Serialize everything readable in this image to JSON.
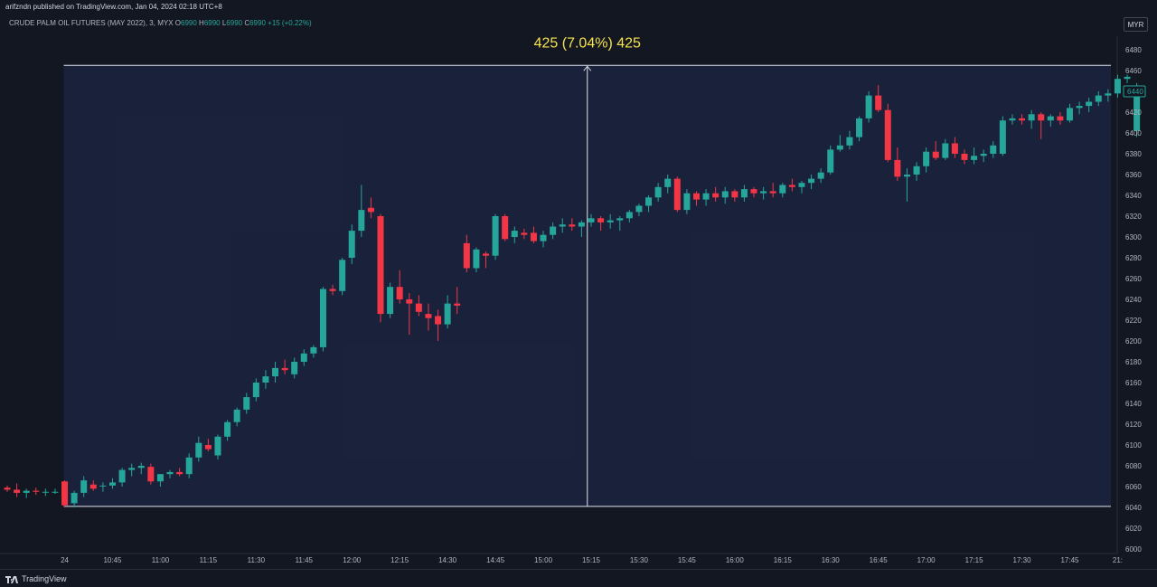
{
  "header": {
    "publish_line": "arifzndn published on TradingView.com, Jan 04, 2024 02:18 UTC+8"
  },
  "legend": {
    "symbol": "CRUDE PALM OIL FUTURES (MAY 2022), 3, MYX",
    "open_key": "O",
    "open": "6990",
    "high_key": "H",
    "high": "6990",
    "low_key": "L",
    "low": "6990",
    "close_key": "C",
    "close": "6990",
    "change": "+15 (+0.22%)"
  },
  "currency_button": "MYR",
  "footer": {
    "brand": "TradingView"
  },
  "colors": {
    "up": "#26a69a",
    "down": "#f23645",
    "background": "#131722",
    "range_fill": "#1c2540",
    "measure_text": "#f7e34b"
  },
  "chart_data": {
    "type": "candlestick",
    "ylim": [
      6000,
      6490
    ],
    "y_ticks": [
      6000,
      6020,
      6040,
      6060,
      6080,
      6100,
      6120,
      6140,
      6160,
      6180,
      6200,
      6220,
      6240,
      6260,
      6280,
      6300,
      6320,
      6340,
      6360,
      6380,
      6400,
      6420,
      6440,
      6460,
      6480
    ],
    "x_ticks": [
      {
        "label": "24",
        "idx": 6
      },
      {
        "label": "10:45",
        "idx": 11
      },
      {
        "label": "11:00",
        "idx": 16
      },
      {
        "label": "11:15",
        "idx": 21
      },
      {
        "label": "11:30",
        "idx": 26
      },
      {
        "label": "11:45",
        "idx": 31
      },
      {
        "label": "12:00",
        "idx": 36
      },
      {
        "label": "12:15",
        "idx": 41
      },
      {
        "label": "14:30",
        "idx": 46
      },
      {
        "label": "14:45",
        "idx": 51
      },
      {
        "label": "15:00",
        "idx": 56
      },
      {
        "label": "15:15",
        "idx": 61
      },
      {
        "label": "15:30",
        "idx": 66
      },
      {
        "label": "15:45",
        "idx": 71
      },
      {
        "label": "16:00",
        "idx": 76
      },
      {
        "label": "16:15",
        "idx": 81
      },
      {
        "label": "16:30",
        "idx": 86
      },
      {
        "label": "16:45",
        "idx": 91
      },
      {
        "label": "17:00",
        "idx": 96
      },
      {
        "label": "17:15",
        "idx": 101
      },
      {
        "label": "17:30",
        "idx": 106
      },
      {
        "label": "17:45",
        "idx": 111
      },
      {
        "label": "21:",
        "idx": 116
      }
    ],
    "candles": [
      [
        6059,
        6061,
        6055,
        6057
      ],
      [
        6057,
        6063,
        6050,
        6054
      ],
      [
        6054,
        6058,
        6049,
        6056
      ],
      [
        6056,
        6059,
        6052,
        6055
      ],
      [
        6055,
        6058,
        6051,
        6055
      ],
      [
        6055,
        6058,
        6053,
        6055
      ],
      [
        6065,
        6066,
        6040,
        6042
      ],
      [
        6044,
        6056,
        6040,
        6054
      ],
      [
        6054,
        6070,
        6050,
        6066
      ],
      [
        6062,
        6066,
        6056,
        6058
      ],
      [
        6061,
        6064,
        6055,
        6061
      ],
      [
        6061,
        6068,
        6058,
        6064
      ],
      [
        6064,
        6078,
        6060,
        6076
      ],
      [
        6076,
        6082,
        6070,
        6078
      ],
      [
        6078,
        6083,
        6072,
        6080
      ],
      [
        6079,
        6082,
        6062,
        6065
      ],
      [
        6065,
        6072,
        6060,
        6072
      ],
      [
        6072,
        6076,
        6068,
        6074
      ],
      [
        6074,
        6078,
        6070,
        6072
      ],
      [
        6072,
        6092,
        6068,
        6088
      ],
      [
        6088,
        6108,
        6084,
        6102
      ],
      [
        6100,
        6106,
        6094,
        6096
      ],
      [
        6090,
        6110,
        6086,
        6108
      ],
      [
        6108,
        6124,
        6104,
        6122
      ],
      [
        6122,
        6136,
        6118,
        6134
      ],
      [
        6134,
        6150,
        6130,
        6146
      ],
      [
        6146,
        6164,
        6142,
        6160
      ],
      [
        6160,
        6172,
        6154,
        6166
      ],
      [
        6166,
        6180,
        6160,
        6174
      ],
      [
        6174,
        6182,
        6168,
        6172
      ],
      [
        6168,
        6184,
        6164,
        6180
      ],
      [
        6180,
        6192,
        6176,
        6188
      ],
      [
        6188,
        6196,
        6184,
        6194
      ],
      [
        6194,
        6252,
        6190,
        6250
      ],
      [
        6250,
        6254,
        6244,
        6248
      ],
      [
        6248,
        6280,
        6244,
        6278
      ],
      [
        6280,
        6312,
        6274,
        6306
      ],
      [
        6306,
        6350,
        6300,
        6326
      ],
      [
        6328,
        6338,
        6318,
        6324
      ],
      [
        6320,
        6322,
        6218,
        6226
      ],
      [
        6226,
        6256,
        6222,
        6252
      ],
      [
        6252,
        6268,
        6236,
        6240
      ],
      [
        6240,
        6246,
        6206,
        6236
      ],
      [
        6236,
        6244,
        6224,
        6228
      ],
      [
        6226,
        6236,
        6210,
        6222
      ],
      [
        6224,
        6230,
        6200,
        6216
      ],
      [
        6216,
        6244,
        6212,
        6236
      ],
      [
        6236,
        6252,
        6226,
        6234
      ],
      [
        6294,
        6302,
        6266,
        6270
      ],
      [
        6270,
        6290,
        6266,
        6288
      ],
      [
        6284,
        6286,
        6270,
        6282
      ],
      [
        6282,
        6322,
        6278,
        6320
      ],
      [
        6320,
        6322,
        6296,
        6298
      ],
      [
        6300,
        6310,
        6294,
        6306
      ],
      [
        6304,
        6308,
        6298,
        6302
      ],
      [
        6304,
        6310,
        6294,
        6296
      ],
      [
        6296,
        6306,
        6290,
        6302
      ],
      [
        6302,
        6314,
        6298,
        6310
      ],
      [
        6310,
        6318,
        6304,
        6312
      ],
      [
        6312,
        6318,
        6306,
        6310
      ],
      [
        6310,
        6316,
        6300,
        6314
      ],
      [
        6314,
        6322,
        6310,
        6318
      ],
      [
        6318,
        6320,
        6306,
        6314
      ],
      [
        6314,
        6322,
        6308,
        6316
      ],
      [
        6316,
        6320,
        6306,
        6318
      ],
      [
        6318,
        6326,
        6314,
        6324
      ],
      [
        6324,
        6332,
        6320,
        6330
      ],
      [
        6330,
        6340,
        6324,
        6338
      ],
      [
        6338,
        6352,
        6334,
        6348
      ],
      [
        6348,
        6360,
        6342,
        6356
      ],
      [
        6356,
        6358,
        6324,
        6326
      ],
      [
        6326,
        6346,
        6322,
        6342
      ],
      [
        6342,
        6344,
        6330,
        6336
      ],
      [
        6336,
        6346,
        6330,
        6342
      ],
      [
        6342,
        6348,
        6334,
        6338
      ],
      [
        6338,
        6348,
        6332,
        6344
      ],
      [
        6344,
        6346,
        6334,
        6338
      ],
      [
        6338,
        6350,
        6334,
        6346
      ],
      [
        6346,
        6348,
        6338,
        6342
      ],
      [
        6342,
        6348,
        6336,
        6344
      ],
      [
        6344,
        6352,
        6338,
        6342
      ],
      [
        6342,
        6352,
        6338,
        6350
      ],
      [
        6350,
        6356,
        6344,
        6348
      ],
      [
        6348,
        6354,
        6342,
        6352
      ],
      [
        6352,
        6360,
        6346,
        6356
      ],
      [
        6356,
        6366,
        6352,
        6362
      ],
      [
        6362,
        6388,
        6360,
        6384
      ],
      [
        6384,
        6398,
        6382,
        6388
      ],
      [
        6388,
        6402,
        6384,
        6396
      ],
      [
        6396,
        6416,
        6392,
        6414
      ],
      [
        6414,
        6440,
        6410,
        6436
      ],
      [
        6436,
        6446,
        6420,
        6422
      ],
      [
        6422,
        6428,
        6372,
        6374
      ],
      [
        6374,
        6386,
        6354,
        6358
      ],
      [
        6358,
        6366,
        6334,
        6360
      ],
      [
        6360,
        6372,
        6354,
        6368
      ],
      [
        6368,
        6386,
        6362,
        6382
      ],
      [
        6382,
        6392,
        6374,
        6376
      ],
      [
        6376,
        6394,
        6374,
        6390
      ],
      [
        6390,
        6396,
        6376,
        6380
      ],
      [
        6380,
        6384,
        6370,
        6374
      ],
      [
        6374,
        6386,
        6370,
        6378
      ],
      [
        6378,
        6384,
        6372,
        6380
      ],
      [
        6380,
        6392,
        6376,
        6388
      ],
      [
        6380,
        6416,
        6378,
        6412
      ],
      [
        6412,
        6418,
        6408,
        6414
      ],
      [
        6414,
        6418,
        6408,
        6412
      ],
      [
        6412,
        6422,
        6404,
        6418
      ],
      [
        6418,
        6420,
        6394,
        6412
      ],
      [
        6412,
        6418,
        6406,
        6416
      ],
      [
        6416,
        6420,
        6408,
        6412
      ],
      [
        6412,
        6428,
        6410,
        6424
      ],
      [
        6424,
        6430,
        6418,
        6426
      ],
      [
        6426,
        6434,
        6420,
        6430
      ],
      [
        6430,
        6440,
        6426,
        6436
      ],
      [
        6436,
        6442,
        6430,
        6438
      ],
      [
        6438,
        6456,
        6434,
        6452
      ],
      [
        6452,
        6456,
        6448,
        6454
      ],
      [
        6402,
        6448,
        6396,
        6440
      ]
    ],
    "measure": {
      "from_idx": 6,
      "to_idx": 115,
      "low": 6041,
      "high": 6465,
      "label": "425 (7.04%) 425"
    },
    "last_price_label": "6440",
    "last_price": 6440,
    "grid": false
  }
}
